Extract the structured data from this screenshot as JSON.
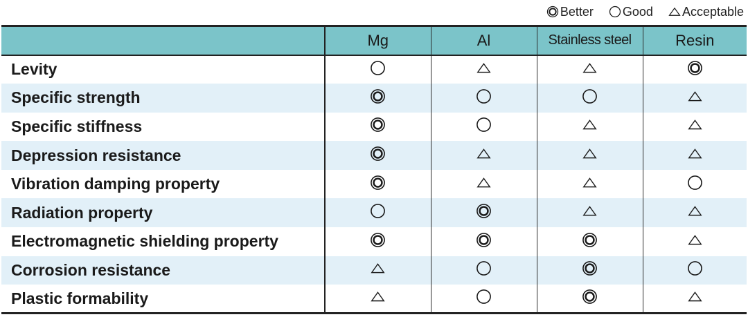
{
  "legend": [
    {
      "symbol": "double-circle",
      "label": "Better"
    },
    {
      "symbol": "circle",
      "label": "Good"
    },
    {
      "symbol": "triangle",
      "label": "Acceptable"
    }
  ],
  "columns": [
    "Mg",
    "Al",
    "Stainless steel",
    "Resin"
  ],
  "rows": [
    {
      "label": "Levity",
      "ratings": [
        "circle",
        "triangle",
        "triangle",
        "double-circle"
      ]
    },
    {
      "label": "Specific strength",
      "ratings": [
        "double-circle",
        "circle",
        "circle",
        "triangle"
      ]
    },
    {
      "label": "Specific stiffness",
      "ratings": [
        "double-circle",
        "circle",
        "triangle",
        "triangle"
      ]
    },
    {
      "label": "Depression resistance",
      "ratings": [
        "double-circle",
        "triangle",
        "triangle",
        "triangle"
      ]
    },
    {
      "label": "Vibration damping property",
      "ratings": [
        "double-circle",
        "triangle",
        "triangle",
        "circle"
      ]
    },
    {
      "label": "Radiation property",
      "ratings": [
        "circle",
        "double-circle",
        "triangle",
        "triangle"
      ]
    },
    {
      "label": "Electromagnetic shielding property",
      "ratings": [
        "double-circle",
        "double-circle",
        "double-circle",
        "triangle"
      ]
    },
    {
      "label": "Corrosion resistance",
      "ratings": [
        "triangle",
        "circle",
        "double-circle",
        "circle"
      ]
    },
    {
      "label": "Plastic formability",
      "ratings": [
        "triangle",
        "circle",
        "double-circle",
        "triangle"
      ]
    }
  ],
  "colors": {
    "header": "#7bc4c9",
    "alt_row": "#e2f0f8"
  }
}
